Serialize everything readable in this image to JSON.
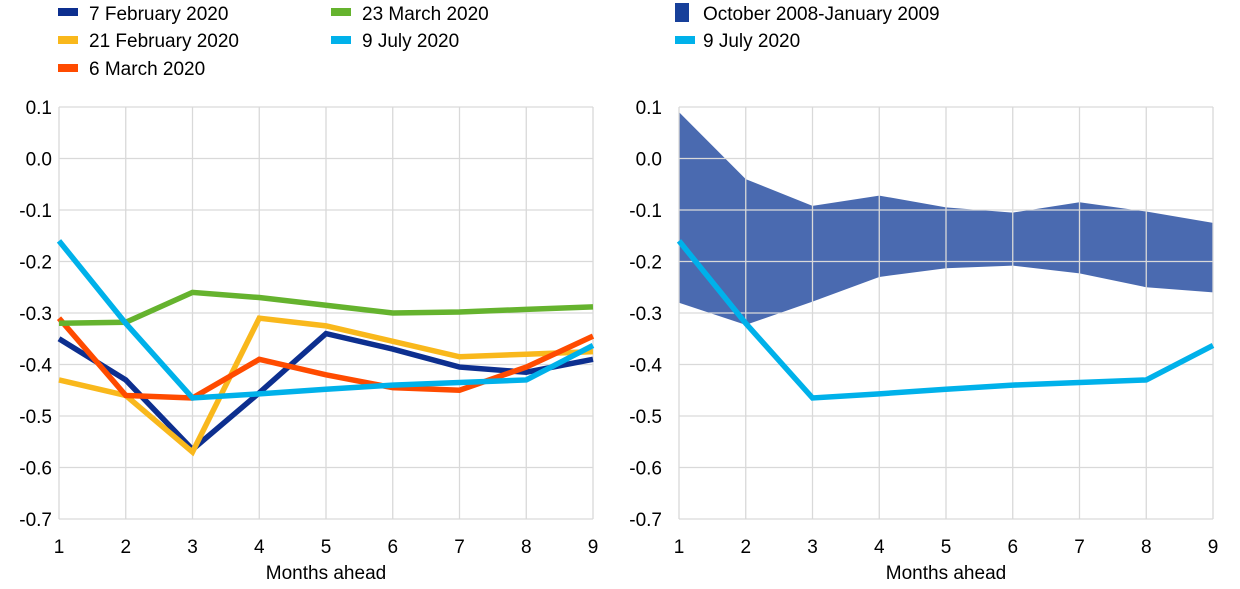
{
  "chart_data": [
    {
      "type": "line",
      "xlabel": "Months ahead",
      "ylabel": "",
      "ylim": [
        -0.7,
        0.1
      ],
      "yticks": [
        "0.1",
        "0.0",
        "-0.1",
        "-0.2",
        "-0.3",
        "-0.4",
        "-0.5",
        "-0.6",
        "-0.7"
      ],
      "x": [
        1,
        2,
        3,
        4,
        5,
        6,
        7,
        8,
        9
      ],
      "grid": true,
      "legend_position": "top",
      "series": [
        {
          "name": "7 February 2020",
          "color": "#0d2f8f",
          "values": [
            -0.35,
            -0.43,
            -0.565,
            -0.455,
            -0.34,
            -0.37,
            -0.405,
            -0.415,
            -0.39
          ]
        },
        {
          "name": "21 February 2020",
          "color": "#f9b81c",
          "values": [
            -0.43,
            -0.46,
            -0.57,
            -0.31,
            -0.325,
            -0.355,
            -0.385,
            -0.38,
            -0.375
          ]
        },
        {
          "name": "6 March 2020",
          "color": "#ff4b00",
          "values": [
            -0.31,
            -0.46,
            -0.465,
            -0.39,
            -0.42,
            -0.445,
            -0.45,
            -0.405,
            -0.345
          ]
        },
        {
          "name": "23 March 2020",
          "color": "#65b32e",
          "values": [
            -0.32,
            -0.318,
            -0.26,
            -0.27,
            -0.285,
            -0.3,
            -0.298,
            -0.293,
            -0.288
          ]
        },
        {
          "name": "9 July 2020",
          "color": "#00b1ea",
          "values": [
            -0.16,
            -0.32,
            -0.465,
            -0.457,
            -0.448,
            -0.44,
            -0.435,
            -0.43,
            -0.363
          ]
        }
      ]
    },
    {
      "type": "area",
      "xlabel": "Months ahead",
      "ylabel": "",
      "ylim": [
        -0.7,
        0.1
      ],
      "yticks": [
        "0.1",
        "0.0",
        "-0.1",
        "-0.2",
        "-0.3",
        "-0.4",
        "-0.5",
        "-0.6",
        "-0.7"
      ],
      "x": [
        1,
        2,
        3,
        4,
        5,
        6,
        7,
        8,
        9
      ],
      "grid": true,
      "legend_position": "top",
      "band": {
        "name": "October 2008-January 2009",
        "color": "#17409a",
        "upper": [
          0.09,
          -0.04,
          -0.092,
          -0.072,
          -0.095,
          -0.105,
          -0.085,
          -0.103,
          -0.125
        ],
        "lower": [
          -0.28,
          -0.323,
          -0.278,
          -0.23,
          -0.213,
          -0.208,
          -0.223,
          -0.25,
          -0.26
        ]
      },
      "series": [
        {
          "name": "9 July 2020",
          "color": "#00b1ea",
          "values": [
            -0.16,
            -0.32,
            -0.465,
            -0.457,
            -0.448,
            -0.44,
            -0.435,
            -0.43,
            -0.363
          ]
        }
      ]
    }
  ]
}
